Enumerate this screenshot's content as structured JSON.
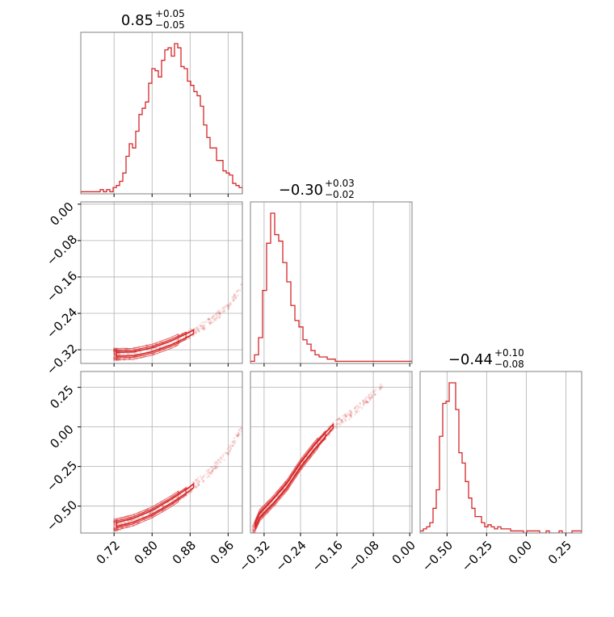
{
  "chart_data": {
    "type": "corner",
    "color": "#d62728",
    "grid": true,
    "parameter_titles": [
      {
        "median": "0.85",
        "plus": "+0.05",
        "minus": "−0.05"
      },
      {
        "median": "−0.30",
        "plus": "+0.03",
        "minus": "−0.02"
      },
      {
        "median": "−0.44",
        "plus": "+0.10",
        "minus": "−0.08"
      }
    ],
    "axes": [
      {
        "range": [
          0.65,
          0.99
        ],
        "ticks": [
          0.72,
          0.8,
          0.88,
          0.96
        ],
        "tick_labels": [
          "0.72",
          "0.80",
          "0.88",
          "0.96"
        ]
      },
      {
        "range": [
          -0.35,
          0.005
        ],
        "ticks": [
          -0.32,
          -0.24,
          -0.16,
          -0.08,
          0.0
        ],
        "tick_labels": [
          "−0.32",
          "−0.24",
          "−0.16",
          "−0.08",
          "0.00"
        ]
      },
      {
        "range": [
          -0.67,
          0.35
        ],
        "ticks": [
          -0.5,
          -0.25,
          0.0,
          0.25
        ],
        "tick_labels": [
          "−0.50",
          "−0.25",
          "0.00",
          "0.25"
        ]
      }
    ],
    "histograms": [
      {
        "param": 0,
        "bin_lo": 0.65,
        "bin_hi": 0.99,
        "counts": [
          1,
          1,
          1,
          1,
          1,
          1,
          2,
          1,
          2,
          1,
          3,
          4,
          6,
          10,
          18,
          24,
          22,
          30,
          38,
          41,
          44,
          53,
          60,
          59,
          56,
          64,
          69,
          70,
          66,
          72,
          70,
          61,
          60,
          54,
          52,
          49,
          47,
          42,
          33,
          27,
          22,
          22,
          16,
          16,
          11,
          10,
          9,
          5,
          4,
          3
        ]
      },
      {
        "param": 1,
        "bin_lo": -0.35,
        "bin_hi": 0.005,
        "counts": [
          1,
          4,
          12,
          34,
          56,
          70,
          60,
          57,
          47,
          38,
          27,
          20,
          17,
          11,
          9,
          6,
          4,
          3,
          3,
          2,
          2,
          1,
          1,
          1,
          1,
          1,
          1,
          1,
          1,
          1,
          1,
          1,
          1,
          1,
          1,
          1,
          1,
          1,
          1,
          1
        ]
      },
      {
        "param": 2,
        "bin_lo": -0.67,
        "bin_hi": 0.35,
        "counts": [
          1,
          2,
          3,
          5,
          12,
          21,
          47,
          63,
          64,
          73,
          73,
          60,
          39,
          34,
          25,
          17,
          12,
          8,
          8,
          5,
          3,
          4,
          3,
          2,
          3,
          2,
          2,
          2,
          1,
          1,
          1,
          1,
          0,
          1,
          1,
          1,
          1,
          0,
          0,
          1,
          0,
          0,
          0,
          1,
          0,
          0,
          0,
          1,
          1,
          1
        ]
      }
    ],
    "relation_curves": [
      {
        "pair": [
          0,
          1
        ],
        "points": [
          [
            0.72,
            -0.33
          ],
          [
            0.76,
            -0.329
          ],
          [
            0.8,
            -0.32
          ],
          [
            0.84,
            -0.305
          ],
          [
            0.88,
            -0.285
          ],
          [
            0.92,
            -0.26
          ],
          [
            0.96,
            -0.225
          ],
          [
            0.99,
            -0.18
          ]
        ]
      },
      {
        "pair": [
          0,
          2
        ],
        "points": [
          [
            0.72,
            -0.62
          ],
          [
            0.76,
            -0.59
          ],
          [
            0.8,
            -0.54
          ],
          [
            0.84,
            -0.47
          ],
          [
            0.88,
            -0.39
          ],
          [
            0.92,
            -0.29
          ],
          [
            0.96,
            -0.16
          ],
          [
            0.99,
            0.0
          ]
        ]
      },
      {
        "pair": [
          1,
          2
        ],
        "points": [
          [
            -0.345,
            -0.66
          ],
          [
            -0.33,
            -0.56
          ],
          [
            -0.3,
            -0.47
          ],
          [
            -0.27,
            -0.37
          ],
          [
            -0.24,
            -0.24
          ],
          [
            -0.21,
            -0.13
          ],
          [
            -0.17,
            0.0
          ],
          [
            -0.12,
            0.1
          ],
          [
            -0.06,
            0.26
          ]
        ]
      }
    ]
  }
}
